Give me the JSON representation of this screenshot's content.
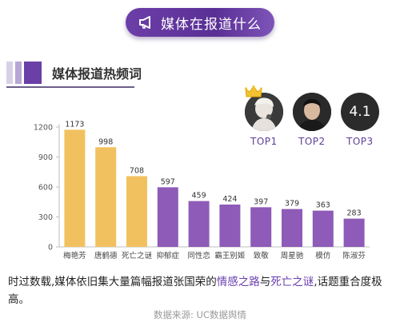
{
  "header": {
    "title": "媒体在报道什么",
    "icon": "megaphone-icon"
  },
  "section": {
    "title": "媒体报道热频词",
    "bar_colors": [
      "#d8d0e6",
      "#b7a6d6",
      "#6a3fa6"
    ]
  },
  "ranking": {
    "items": [
      {
        "label": "TOP1",
        "icon": "crown-icon"
      },
      {
        "label": "TOP2"
      },
      {
        "label": "TOP3",
        "value": "4.1"
      }
    ]
  },
  "chart_data": {
    "type": "bar",
    "categories": [
      "梅艳芳",
      "唐鹤德",
      "死亡之谜",
      "抑郁症",
      "同性恋",
      "霸王别姬",
      "致敬",
      "周星驰",
      "模仿",
      "陈淑芬"
    ],
    "values": [
      1173,
      998,
      708,
      597,
      459,
      424,
      397,
      379,
      363,
      283
    ],
    "bar_colors": [
      "#f2c15f",
      "#f2c15f",
      "#f2c15f",
      "#8e5bb8",
      "#8e5bb8",
      "#8e5bb8",
      "#8e5bb8",
      "#8e5bb8",
      "#8e5bb8",
      "#8e5bb8"
    ],
    "yticks": [
      0,
      300,
      600,
      900,
      1200
    ],
    "ylim": [
      0,
      1200
    ],
    "grid": false
  },
  "summary": {
    "part1": "时过数载,媒体依旧集大量篇幅报道张国荣的",
    "highlight1": "情感之路",
    "part2": "与",
    "highlight2": "死亡之谜",
    "part3": ",话题重合度极高。"
  },
  "source": "数据来源: UC数据舆情"
}
